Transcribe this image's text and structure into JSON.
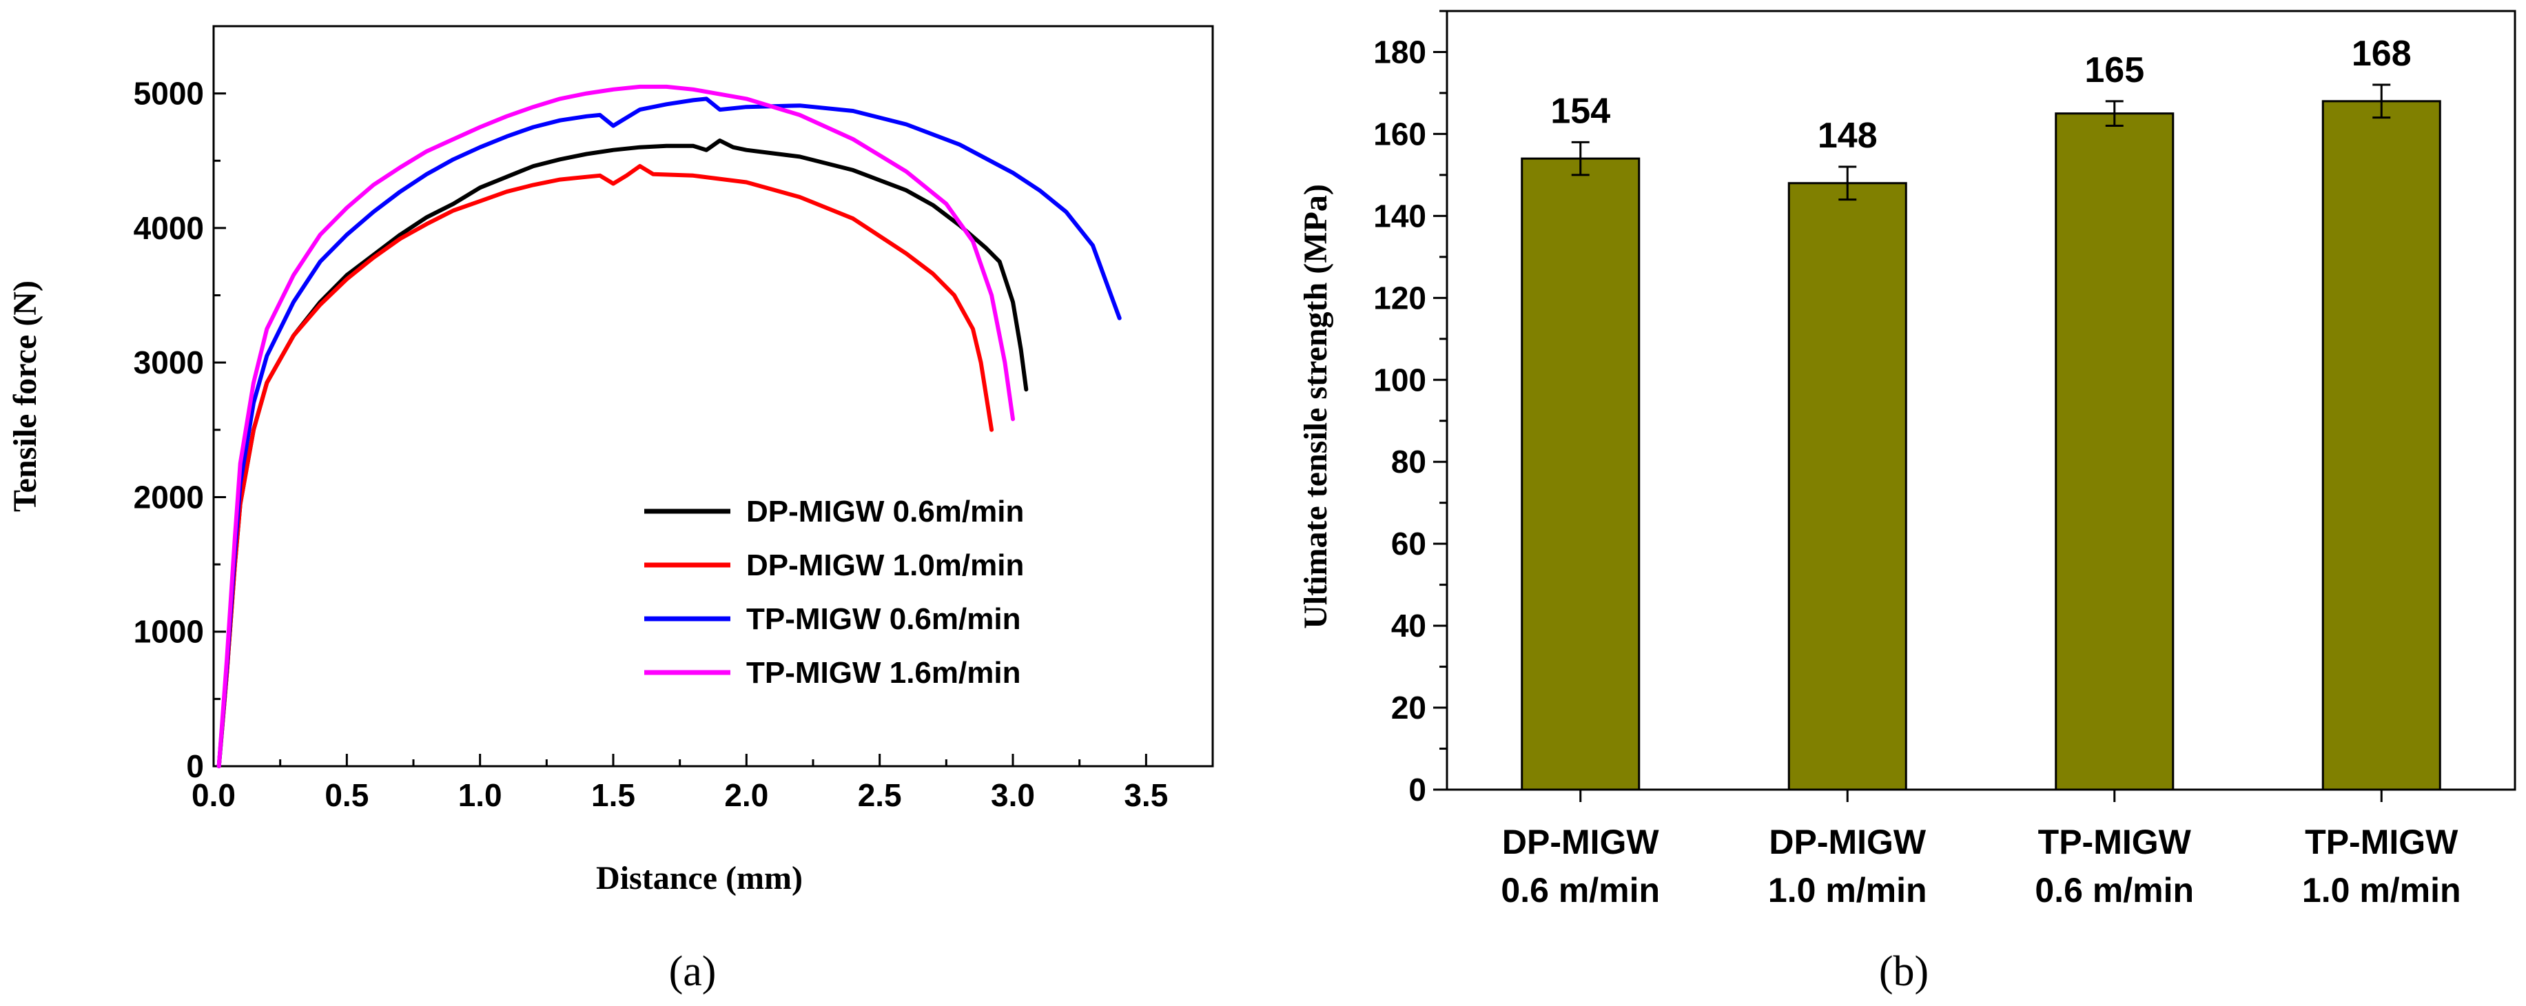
{
  "chart_data": [
    {
      "id": "a",
      "type": "line",
      "panel_label": "(a)",
      "xlabel": "Distance (mm)",
      "ylabel": "Tensile force (N)",
      "xlim": [
        0,
        3.75
      ],
      "ylim": [
        0,
        5500
      ],
      "xticks": [
        "0.0",
        "0.5",
        "1.0",
        "1.5",
        "2.0",
        "2.5",
        "3.0",
        "3.5"
      ],
      "yticks": [
        "0",
        "1000",
        "2000",
        "3000",
        "4000",
        "5000"
      ],
      "legend_position": "lower-right",
      "series": [
        {
          "name": "DP-MIGW 0.6m/min",
          "color": "#000000",
          "points": [
            [
              0.02,
              0
            ],
            [
              0.05,
              700
            ],
            [
              0.08,
              1500
            ],
            [
              0.1,
              1950
            ],
            [
              0.15,
              2500
            ],
            [
              0.2,
              2850
            ],
            [
              0.3,
              3200
            ],
            [
              0.4,
              3450
            ],
            [
              0.5,
              3650
            ],
            [
              0.6,
              3800
            ],
            [
              0.7,
              3950
            ],
            [
              0.8,
              4080
            ],
            [
              0.9,
              4180
            ],
            [
              1.0,
              4300
            ],
            [
              1.1,
              4380
            ],
            [
              1.2,
              4460
            ],
            [
              1.3,
              4510
            ],
            [
              1.4,
              4550
            ],
            [
              1.5,
              4580
            ],
            [
              1.6,
              4600
            ],
            [
              1.7,
              4610
            ],
            [
              1.8,
              4610
            ],
            [
              1.85,
              4580
            ],
            [
              1.9,
              4650
            ],
            [
              1.95,
              4600
            ],
            [
              2.0,
              4580
            ],
            [
              2.2,
              4530
            ],
            [
              2.4,
              4430
            ],
            [
              2.6,
              4280
            ],
            [
              2.7,
              4170
            ],
            [
              2.8,
              4020
            ],
            [
              2.9,
              3850
            ],
            [
              2.95,
              3750
            ],
            [
              3.0,
              3450
            ],
            [
              3.03,
              3100
            ],
            [
              3.05,
              2800
            ]
          ]
        },
        {
          "name": "DP-MIGW 1.0m/min",
          "color": "#ff0000",
          "points": [
            [
              0.02,
              0
            ],
            [
              0.05,
              700
            ],
            [
              0.08,
              1500
            ],
            [
              0.1,
              1950
            ],
            [
              0.15,
              2500
            ],
            [
              0.2,
              2850
            ],
            [
              0.3,
              3200
            ],
            [
              0.4,
              3430
            ],
            [
              0.5,
              3620
            ],
            [
              0.6,
              3780
            ],
            [
              0.7,
              3920
            ],
            [
              0.8,
              4030
            ],
            [
              0.9,
              4130
            ],
            [
              1.0,
              4200
            ],
            [
              1.1,
              4270
            ],
            [
              1.2,
              4320
            ],
            [
              1.3,
              4360
            ],
            [
              1.4,
              4380
            ],
            [
              1.45,
              4390
            ],
            [
              1.5,
              4330
            ],
            [
              1.55,
              4390
            ],
            [
              1.6,
              4460
            ],
            [
              1.65,
              4400
            ],
            [
              1.8,
              4390
            ],
            [
              2.0,
              4340
            ],
            [
              2.2,
              4230
            ],
            [
              2.4,
              4070
            ],
            [
              2.6,
              3810
            ],
            [
              2.7,
              3660
            ],
            [
              2.78,
              3500
            ],
            [
              2.85,
              3250
            ],
            [
              2.88,
              3000
            ],
            [
              2.92,
              2500
            ]
          ]
        },
        {
          "name": "TP-MIGW 0.6m/min",
          "color": "#0000ff",
          "points": [
            [
              0.02,
              0
            ],
            [
              0.05,
              750
            ],
            [
              0.08,
              1600
            ],
            [
              0.1,
              2100
            ],
            [
              0.15,
              2700
            ],
            [
              0.2,
              3050
            ],
            [
              0.3,
              3450
            ],
            [
              0.4,
              3750
            ],
            [
              0.5,
              3950
            ],
            [
              0.6,
              4120
            ],
            [
              0.7,
              4270
            ],
            [
              0.8,
              4400
            ],
            [
              0.9,
              4510
            ],
            [
              1.0,
              4600
            ],
            [
              1.1,
              4680
            ],
            [
              1.2,
              4750
            ],
            [
              1.3,
              4800
            ],
            [
              1.4,
              4830
            ],
            [
              1.45,
              4840
            ],
            [
              1.5,
              4760
            ],
            [
              1.55,
              4820
            ],
            [
              1.6,
              4880
            ],
            [
              1.7,
              4920
            ],
            [
              1.8,
              4950
            ],
            [
              1.85,
              4960
            ],
            [
              1.9,
              4880
            ],
            [
              2.0,
              4900
            ],
            [
              2.2,
              4910
            ],
            [
              2.4,
              4870
            ],
            [
              2.6,
              4770
            ],
            [
              2.8,
              4620
            ],
            [
              3.0,
              4410
            ],
            [
              3.1,
              4280
            ],
            [
              3.2,
              4120
            ],
            [
              3.3,
              3870
            ],
            [
              3.35,
              3600
            ],
            [
              3.4,
              3330
            ]
          ]
        },
        {
          "name": "TP-MIGW 1.6m/min",
          "color": "#ff00ff",
          "points": [
            [
              0.02,
              0
            ],
            [
              0.05,
              800
            ],
            [
              0.08,
              1700
            ],
            [
              0.1,
              2250
            ],
            [
              0.15,
              2850
            ],
            [
              0.2,
              3250
            ],
            [
              0.3,
              3650
            ],
            [
              0.4,
              3950
            ],
            [
              0.5,
              4150
            ],
            [
              0.6,
              4320
            ],
            [
              0.7,
              4450
            ],
            [
              0.8,
              4570
            ],
            [
              0.9,
              4660
            ],
            [
              1.0,
              4750
            ],
            [
              1.1,
              4830
            ],
            [
              1.2,
              4900
            ],
            [
              1.3,
              4960
            ],
            [
              1.4,
              5000
            ],
            [
              1.5,
              5030
            ],
            [
              1.6,
              5050
            ],
            [
              1.7,
              5050
            ],
            [
              1.8,
              5030
            ],
            [
              2.0,
              4960
            ],
            [
              2.2,
              4840
            ],
            [
              2.4,
              4660
            ],
            [
              2.6,
              4420
            ],
            [
              2.75,
              4180
            ],
            [
              2.85,
              3900
            ],
            [
              2.92,
              3500
            ],
            [
              2.97,
              3000
            ],
            [
              3.0,
              2580
            ]
          ]
        }
      ]
    },
    {
      "id": "b",
      "type": "bar",
      "panel_label": "(b)",
      "xlabel": "",
      "ylabel": "Ultimate tensile strength (MPa)",
      "ylim": [
        0,
        190
      ],
      "yticks": [
        "0",
        "20",
        "40",
        "60",
        "80",
        "100",
        "120",
        "140",
        "160",
        "180"
      ],
      "bar_color": "#808000",
      "categories": [
        [
          "DP-MIGW",
          "0.6 m/min"
        ],
        [
          "DP-MIGW",
          "1.0 m/min"
        ],
        [
          "TP-MIGW",
          "0.6 m/min"
        ],
        [
          "TP-MIGW",
          "1.0 m/min"
        ]
      ],
      "values": [
        154,
        148,
        165,
        168
      ],
      "value_labels": [
        "154",
        "148",
        "165",
        "168"
      ],
      "errors": [
        4,
        4,
        3,
        4
      ]
    }
  ]
}
